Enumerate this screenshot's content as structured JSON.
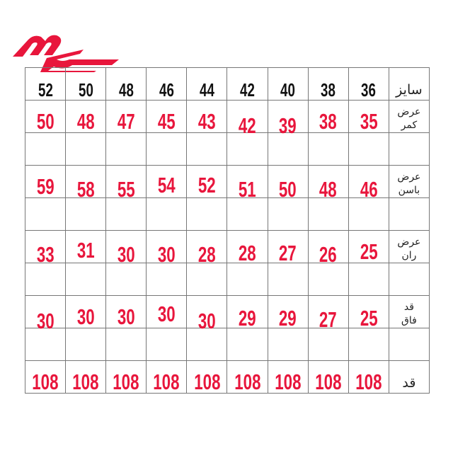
{
  "brand_color": "#e8163c",
  "logo": {
    "icon": "brand-logo"
  },
  "sizes": [
    "52",
    "50",
    "48",
    "46",
    "44",
    "42",
    "40",
    "38",
    "36"
  ],
  "size_label": "سایز",
  "rows": [
    {
      "label": [
        "عرض",
        "کمر"
      ],
      "values": [
        "50",
        "48",
        "47",
        "45",
        "43",
        "42",
        "39",
        "38",
        "35"
      ]
    },
    {
      "label": [
        "عرض",
        "باسن"
      ],
      "values": [
        "59",
        "58",
        "55",
        "54",
        "52",
        "51",
        "50",
        "48",
        "46"
      ]
    },
    {
      "label": [
        "عرض",
        "ران"
      ],
      "values": [
        "33",
        "31",
        "30",
        "30",
        "28",
        "28",
        "27",
        "26",
        "25"
      ]
    },
    {
      "label": [
        "قد",
        "فاق"
      ],
      "values": [
        "30",
        "30",
        "30",
        "30",
        "30",
        "29",
        "29",
        "27",
        "25"
      ]
    },
    {
      "label": [
        "قد"
      ],
      "values": [
        "108",
        "108",
        "108",
        "108",
        "108",
        "108",
        "108",
        "108",
        "108"
      ]
    }
  ]
}
